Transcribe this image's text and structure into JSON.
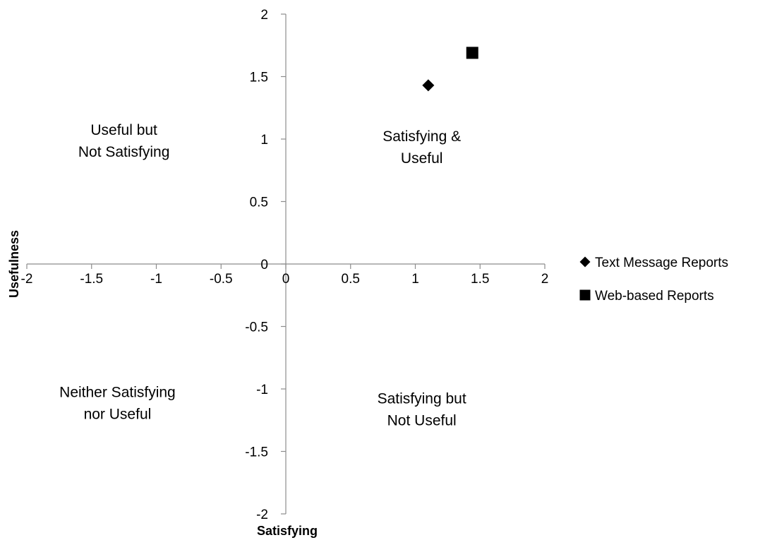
{
  "chart_data": {
    "type": "scatter",
    "title": "",
    "xlabel": "Satisfying",
    "ylabel": "Usefulness",
    "xlim": [
      -2,
      2
    ],
    "ylim": [
      -2,
      2
    ],
    "x_ticks": [
      -2,
      -1.5,
      -1,
      -0.5,
      0,
      0.5,
      1,
      1.5,
      2
    ],
    "y_ticks": [
      -2,
      -1.5,
      -1,
      -0.5,
      0,
      0.5,
      1,
      1.5,
      2
    ],
    "grid": false,
    "legend_position": "right",
    "series": [
      {
        "name": "Text Message Reports",
        "marker": "diamond",
        "color": "#000000",
        "points": [
          {
            "x": 1.1,
            "y": 1.43
          }
        ]
      },
      {
        "name": "Web-based Reports",
        "marker": "square",
        "color": "#000000",
        "points": [
          {
            "x": 1.44,
            "y": 1.69
          }
        ]
      }
    ],
    "quadrant_labels": [
      {
        "lines": [
          "Useful but",
          "Not Satisfying"
        ],
        "x": -1.25,
        "y": 1.0
      },
      {
        "lines": [
          "Satisfying &",
          "Useful"
        ],
        "x": 1.05,
        "y": 0.95
      },
      {
        "lines": [
          "Neither Satisfying",
          "nor Useful"
        ],
        "x": -1.3,
        "y": -1.1
      },
      {
        "lines": [
          "Satisfying but",
          "Not Useful"
        ],
        "x": 1.05,
        "y": -1.15
      }
    ]
  }
}
